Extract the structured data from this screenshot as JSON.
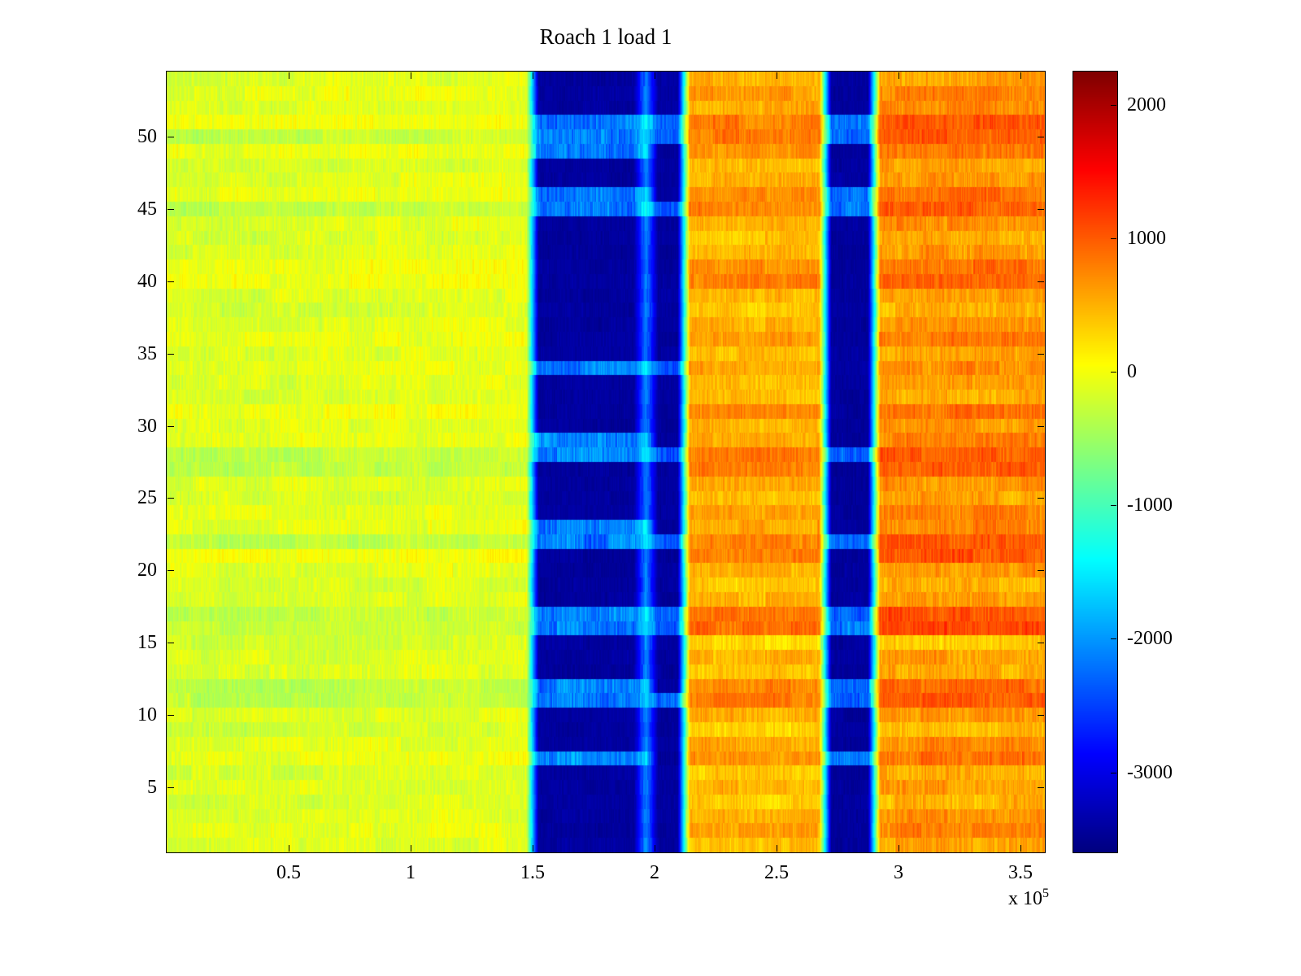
{
  "chart_data": {
    "type": "heatmap",
    "title": "Roach 1 load 1",
    "xlabel": "",
    "ylabel": "",
    "x_range": [
      0,
      360000
    ],
    "x_ticks": [
      {
        "value": 50000,
        "label": "0.5"
      },
      {
        "value": 100000,
        "label": "1"
      },
      {
        "value": 150000,
        "label": "1.5"
      },
      {
        "value": 200000,
        "label": "2"
      },
      {
        "value": 250000,
        "label": "2.5"
      },
      {
        "value": 300000,
        "label": "3"
      },
      {
        "value": 350000,
        "label": "3.5"
      }
    ],
    "x_multiplier": {
      "base": "x 10",
      "exponent": "5"
    },
    "y_range": [
      0.5,
      54.5
    ],
    "y_ticks": [
      5,
      10,
      15,
      20,
      25,
      30,
      35,
      40,
      45,
      50
    ],
    "rows": 54,
    "colormap": "jet",
    "color_range": [
      -3600,
      2250
    ],
    "colorbar_ticks": [
      2000,
      1000,
      0,
      -1000,
      -2000,
      -3000
    ],
    "grid": false,
    "legend": "colorbar-right",
    "noise_seed": 7,
    "cool_rows": [
      11,
      12,
      16,
      17,
      22,
      27,
      28,
      45,
      50
    ],
    "row_offsets": [
      50,
      280,
      150,
      -60,
      120,
      0,
      320,
      180,
      -80,
      120,
      480,
      380,
      20,
      120,
      -140,
      580,
      520,
      80,
      0,
      160,
      520,
      470,
      220,
      260,
      20,
      140,
      430,
      470,
      220,
      120,
      360,
      0,
      120,
      220,
      60,
      260,
      160,
      -40,
      120,
      420,
      360,
      120,
      20,
      160,
      420,
      360,
      120,
      20,
      320,
      520,
      460,
      160,
      260,
      120
    ],
    "bands": [
      {
        "x0": 0,
        "x1": 150000,
        "base": -120,
        "noise": 270,
        "row_gain": 0.35,
        "cool_offset": -300,
        "edge_grad": -80,
        "kind": "warm"
      },
      {
        "x0": 150000,
        "x1": 194000,
        "base": -3430,
        "noise": 130,
        "kind": "cold",
        "bright_value": -2150,
        "bright_noise": 500,
        "bright_rows": [
          7,
          11,
          12,
          16,
          17,
          22,
          23,
          28,
          29,
          34,
          45,
          46,
          49,
          50,
          51
        ]
      },
      {
        "x0": 194000,
        "x1": 199000,
        "base": -2100,
        "noise": 300,
        "kind": "cold",
        "bright_value": -1500,
        "bright_noise": 380,
        "bright_rows": [
          7,
          11,
          12,
          16,
          17,
          22,
          23,
          28,
          29,
          34,
          45,
          46,
          49,
          50,
          51
        ]
      },
      {
        "x0": 199000,
        "x1": 212000,
        "base": -3430,
        "noise": 130,
        "kind": "cold",
        "bright_value": -2350,
        "bright_noise": 420,
        "bright_rows": [
          11,
          16,
          17,
          22,
          28,
          34,
          45,
          50,
          51
        ]
      },
      {
        "x0": 212000,
        "x1": 270000,
        "base": 380,
        "noise": 310,
        "row_gain": 0.9,
        "kind": "warm"
      },
      {
        "x0": 270000,
        "x1": 290000,
        "base": -3430,
        "noise": 130,
        "kind": "cold",
        "bright_value": -2250,
        "bright_noise": 460,
        "bright_rows": [
          7,
          11,
          12,
          16,
          17,
          22,
          28,
          45,
          46,
          50,
          51
        ]
      },
      {
        "x0": 290000,
        "x1": 360000,
        "base": 520,
        "noise": 340,
        "row_gain": 1.0,
        "kind": "warm"
      }
    ]
  }
}
